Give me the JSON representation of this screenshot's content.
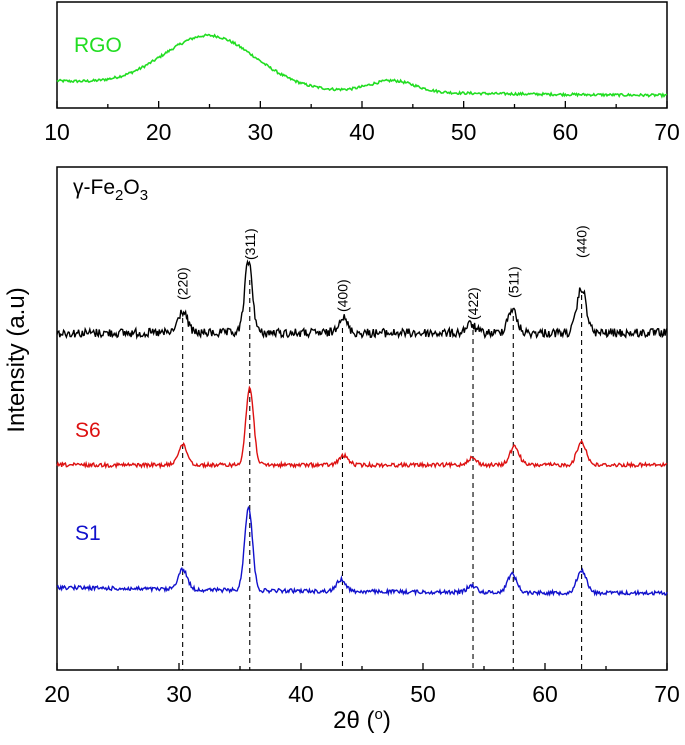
{
  "chart_data": [
    {
      "type": "line",
      "panel": "top",
      "xlim": [
        10,
        70
      ],
      "x_ticks": [
        "10",
        "20",
        "30",
        "40",
        "50",
        "60",
        "70"
      ],
      "x_tick_values": [
        10,
        20,
        30,
        40,
        50,
        60,
        70
      ],
      "ylabel": "",
      "series": [
        {
          "name": "RGO",
          "color": "#22dd22",
          "peaks": [
            {
              "center": 25,
              "height": 1.0,
              "width": 4.5
            },
            {
              "center": 43,
              "height": 0.22,
              "width": 2.2
            }
          ],
          "baseline": 0.0
        }
      ]
    },
    {
      "type": "line",
      "panel": "bottom",
      "xlim": [
        20,
        70
      ],
      "x_ticks": [
        "20",
        "30",
        "40",
        "50",
        "60",
        "70"
      ],
      "x_tick_values": [
        20,
        30,
        40,
        50,
        60,
        70
      ],
      "xlabel_prefix": "2θ (",
      "xlabel_sup": "o",
      "xlabel_suffix": ")",
      "ylabel": "Intensity (a.u)",
      "series": [
        {
          "name": "γ-Fe2O3",
          "label_parts": [
            "γ-Fe",
            "2",
            "O",
            "3"
          ],
          "color": "#000000",
          "peaks": [
            {
              "center": 30.3,
              "height": 0.3
            },
            {
              "center": 35.7,
              "height": 1.0
            },
            {
              "center": 43.4,
              "height": 0.22
            },
            {
              "center": 53.9,
              "height": 0.12
            },
            {
              "center": 57.3,
              "height": 0.33
            },
            {
              "center": 63.0,
              "height": 0.62
            }
          ]
        },
        {
          "name": "S6",
          "color": "#dd1111",
          "peaks": [
            {
              "center": 30.3,
              "height": 0.26
            },
            {
              "center": 35.8,
              "height": 1.0
            },
            {
              "center": 43.5,
              "height": 0.12
            },
            {
              "center": 54.0,
              "height": 0.09
            },
            {
              "center": 57.5,
              "height": 0.24
            },
            {
              "center": 63.0,
              "height": 0.3
            }
          ]
        },
        {
          "name": "S1",
          "color": "#1111cc",
          "peaks": [
            {
              "center": 30.3,
              "height": 0.24
            },
            {
              "center": 35.7,
              "height": 1.0
            },
            {
              "center": 43.3,
              "height": 0.14
            },
            {
              "center": 54.0,
              "height": 0.08
            },
            {
              "center": 57.3,
              "height": 0.22
            },
            {
              "center": 63.0,
              "height": 0.27
            }
          ]
        }
      ],
      "reference_lines": [
        30.3,
        35.8,
        43.4,
        54.1,
        57.4,
        63.0
      ],
      "annotations": [
        {
          "text": "(220)",
          "x": 30.3
        },
        {
          "text": "(311)",
          "x": 35.8
        },
        {
          "text": "(400)",
          "x": 43.4
        },
        {
          "text": "(422)",
          "x": 54.1
        },
        {
          "text": "(511)",
          "x": 57.4
        },
        {
          "text": "(440)",
          "x": 63.0
        }
      ]
    }
  ]
}
